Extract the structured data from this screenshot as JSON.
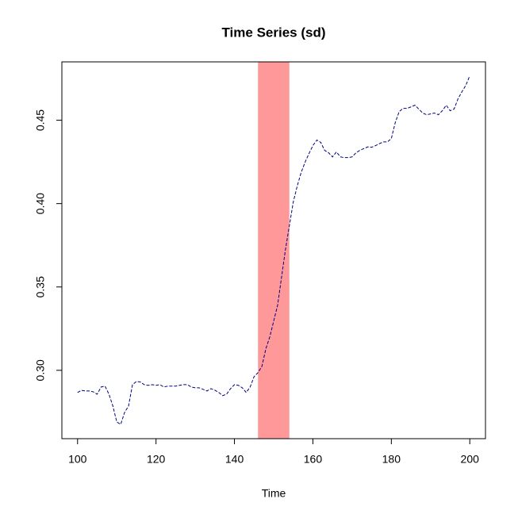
{
  "chart_data": {
    "type": "line",
    "title": "Time Series (sd)",
    "xlabel": "Time",
    "x": [
      100,
      101,
      102,
      103,
      104,
      105,
      106,
      107,
      108,
      109,
      110,
      111,
      112,
      113,
      114,
      115,
      116,
      117,
      118,
      119,
      120,
      121,
      122,
      123,
      124,
      125,
      126,
      127,
      128,
      129,
      130,
      131,
      132,
      133,
      134,
      135,
      136,
      137,
      138,
      139,
      140,
      141,
      142,
      143,
      144,
      145,
      146,
      147,
      148,
      149,
      150,
      151,
      152,
      153,
      154,
      155,
      156,
      157,
      158,
      159,
      160,
      161,
      162,
      163,
      164,
      165,
      166,
      167,
      168,
      169,
      170,
      171,
      172,
      173,
      174,
      175,
      176,
      177,
      178,
      179,
      180,
      181,
      182,
      183,
      184,
      185,
      186,
      187,
      188,
      189,
      190,
      191,
      192,
      193,
      194,
      195,
      196,
      197,
      198,
      199,
      200
    ],
    "series": [
      {
        "color": "#000080",
        "values": [
          0.2867,
          0.288,
          0.2876,
          0.2876,
          0.2871,
          0.2857,
          0.29,
          0.2905,
          0.2857,
          0.2786,
          0.269,
          0.2676,
          0.2748,
          0.2786,
          0.2914,
          0.2933,
          0.293,
          0.2914,
          0.291,
          0.2914,
          0.291,
          0.2914,
          0.29,
          0.2905,
          0.2905,
          0.2905,
          0.291,
          0.2914,
          0.2914,
          0.29,
          0.2895,
          0.2895,
          0.2886,
          0.2876,
          0.289,
          0.2881,
          0.2867,
          0.2848,
          0.2857,
          0.289,
          0.2914,
          0.291,
          0.2895,
          0.2867,
          0.29,
          0.2962,
          0.2986,
          0.3024,
          0.3129,
          0.32,
          0.3295,
          0.339,
          0.3557,
          0.3724,
          0.3867,
          0.401,
          0.4105,
          0.4186,
          0.4248,
          0.43,
          0.4348,
          0.4381,
          0.4367,
          0.4319,
          0.4305,
          0.428,
          0.431,
          0.428,
          0.4276,
          0.4276,
          0.428,
          0.4305,
          0.432,
          0.433,
          0.434,
          0.4338,
          0.4348,
          0.436,
          0.437,
          0.437,
          0.439,
          0.4486,
          0.4552,
          0.4571,
          0.4571,
          0.458,
          0.459,
          0.4567,
          0.4543,
          0.4533,
          0.4538,
          0.4543,
          0.4533,
          0.4557,
          0.459,
          0.4557,
          0.4567,
          0.4629,
          0.4671,
          0.471,
          0.4767
        ]
      }
    ],
    "highlight": {
      "xrange": [
        146,
        154
      ],
      "color": "#ff9999"
    },
    "xlim": [
      96,
      204
    ],
    "ylim": [
      0.259,
      0.485
    ],
    "xticks": [
      100,
      120,
      140,
      160,
      180,
      200
    ],
    "yticks": [
      {
        "value": 0.3,
        "label": "0.30"
      },
      0.35,
      {
        "value": 0.4,
        "label": "0.40"
      },
      0.45
    ]
  }
}
